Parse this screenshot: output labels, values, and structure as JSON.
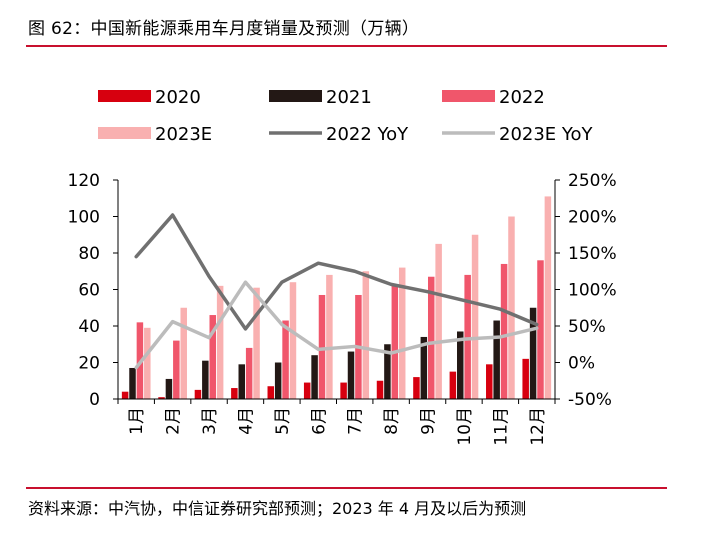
{
  "header": {
    "title": "图 62：中国新能源乘用车月度销量及预测（万辆）"
  },
  "footer": {
    "source": "资料来源：中汽协，中信证券研究部预测；2023 年 4 月及以后为预测"
  },
  "colors": {
    "s2020": "#d7000f",
    "s2021": "#231815",
    "s2022": "#f0566b",
    "s2023E": "#f9b0b0",
    "yoy2022": "#707070",
    "yoy2023E": "#bcbcbc",
    "accent_rule": "#c8102e"
  },
  "chart_data": {
    "type": "bar",
    "title": "",
    "categories": [
      "1月",
      "2月",
      "3月",
      "4月",
      "5月",
      "6月",
      "7月",
      "8月",
      "9月",
      "10月",
      "11月",
      "12月"
    ],
    "series": [
      {
        "name": "2020",
        "type": "bar",
        "axis": "left",
        "values": [
          4,
          1,
          5,
          6,
          7,
          9,
          9,
          10,
          12,
          15,
          19,
          22
        ]
      },
      {
        "name": "2021",
        "type": "bar",
        "axis": "left",
        "values": [
          17,
          11,
          21,
          19,
          20,
          24,
          26,
          30,
          34,
          37,
          43,
          50
        ]
      },
      {
        "name": "2022",
        "type": "bar",
        "axis": "left",
        "values": [
          42,
          32,
          46,
          28,
          43,
          57,
          57,
          63,
          67,
          68,
          74,
          76
        ]
      },
      {
        "name": "2023E",
        "type": "bar",
        "axis": "left",
        "values": [
          39,
          50,
          62,
          61,
          64,
          68,
          70,
          72,
          85,
          90,
          100,
          111
        ]
      },
      {
        "name": "2022 YoY",
        "type": "line",
        "axis": "right",
        "values": [
          145,
          202,
          118,
          46,
          110,
          136,
          125,
          107,
          97,
          85,
          73,
          52
        ]
      },
      {
        "name": "2023E YoY",
        "type": "line",
        "axis": "right",
        "values": [
          -7,
          56,
          34,
          110,
          52,
          18,
          22,
          13,
          26,
          32,
          35,
          47
        ]
      }
    ],
    "y_left": {
      "ylim": [
        0,
        120
      ],
      "ticks": [
        0,
        20,
        40,
        60,
        80,
        100,
        120
      ],
      "tick_labels": [
        "0",
        "20",
        "40",
        "60",
        "80",
        "100",
        "120"
      ]
    },
    "y_right": {
      "ylim": [
        -50,
        250
      ],
      "ticks": [
        -50,
        0,
        50,
        100,
        150,
        200,
        250
      ],
      "tick_labels": [
        "-50%",
        "0%",
        "50%",
        "100%",
        "150%",
        "200%",
        "250%"
      ]
    },
    "grid": false,
    "legend": {
      "position": "top",
      "rows": [
        [
          "2020",
          "2021",
          "2022"
        ],
        [
          "2023E",
          "2022 YoY",
          "2023E YoY"
        ]
      ]
    }
  }
}
